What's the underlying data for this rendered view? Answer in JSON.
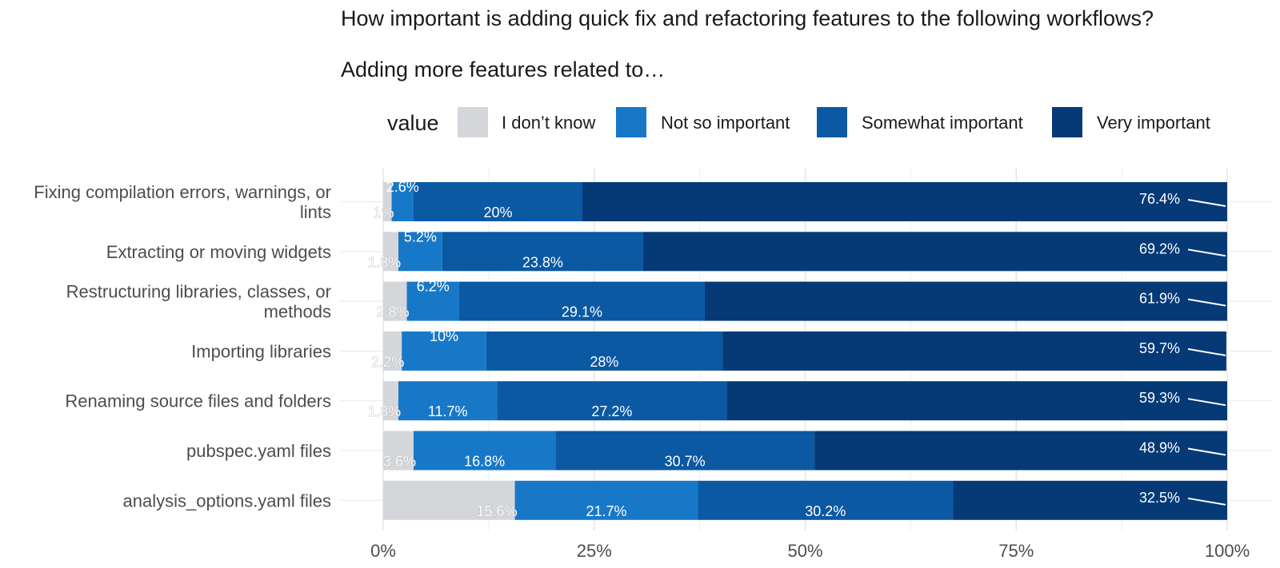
{
  "chart_data": {
    "type": "bar",
    "orientation": "horizontal",
    "stacked": true,
    "percent_scale": true,
    "title": "How important is adding quick fix and refactoring features to the following workflows?",
    "subtitle": "Adding more features related to…",
    "legend_title": "value",
    "legend_position": "top",
    "grid": true,
    "xlim": [
      0,
      100
    ],
    "x_ticks": [
      "0%",
      "25%",
      "50%",
      "75%",
      "100%"
    ],
    "x_tick_values": [
      0,
      25,
      50,
      75,
      100
    ],
    "categories": [
      [
        "Fixing compilation errors, warnings, or",
        "lints"
      ],
      [
        "Extracting or moving widgets"
      ],
      [
        "Restructuring libraries, classes, or",
        "methods"
      ],
      [
        "Importing libraries"
      ],
      [
        "Renaming source files and folders"
      ],
      [
        "pubspec.yaml files"
      ],
      [
        "analysis_options.yaml files"
      ]
    ],
    "series": [
      {
        "name": "I don’t know",
        "color": "#d4d6da",
        "values": [
          1.0,
          1.8,
          2.8,
          2.2,
          1.8,
          3.6,
          15.6
        ],
        "labels": [
          "1%",
          "1.8%",
          "2.8%",
          "2.2%",
          "1.8%",
          "3.6%",
          "15.6%"
        ]
      },
      {
        "name": "Not so important",
        "color": "#1878c8",
        "values": [
          2.6,
          5.2,
          6.2,
          10,
          11.7,
          16.8,
          21.7
        ],
        "labels": [
          "2.6%",
          "5.2%",
          "6.2%",
          "10%",
          "11.7%",
          "16.8%",
          "21.7%"
        ]
      },
      {
        "name": "Somewhat important",
        "color": "#0b58a3",
        "values": [
          20,
          23.8,
          29.1,
          28,
          27.2,
          30.7,
          30.2
        ],
        "labels": [
          "20%",
          "23.8%",
          "29.1%",
          "28%",
          "27.2%",
          "30.7%",
          "30.2%"
        ]
      },
      {
        "name": "Very important",
        "color": "#053a77",
        "values": [
          76.4,
          69.2,
          61.9,
          59.7,
          59.3,
          48.9,
          32.5
        ],
        "labels": [
          "76.4%",
          "69.2%",
          "61.9%",
          "59.7%",
          "59.3%",
          "48.9%",
          "32.5%"
        ]
      }
    ]
  }
}
